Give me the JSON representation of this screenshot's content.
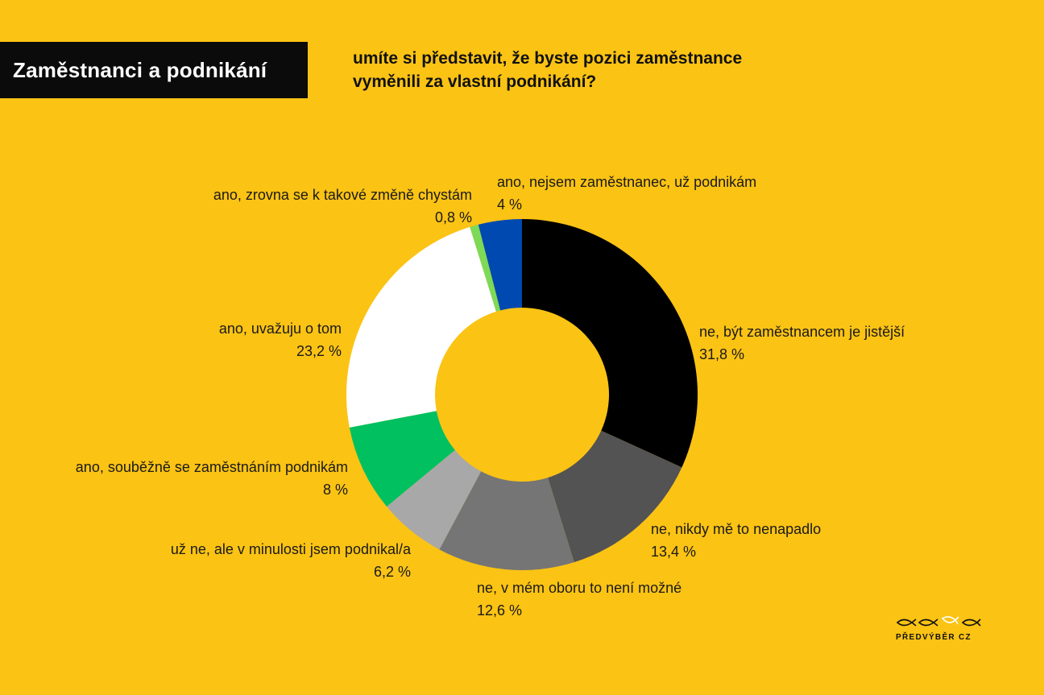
{
  "header": {
    "badge": "Zaměstnanci a podnikání",
    "question_line1": "umíte si představit, že byste pozici zaměstnance",
    "question_line2": "vyměnili za vlastní podnikání?"
  },
  "brand": {
    "name": "PŘEDVÝBĚR CZ"
  },
  "colors": {
    "background": "#FBC314",
    "badge_bg": "#0B0B0B"
  },
  "chart_data": {
    "type": "pie",
    "donut": true,
    "start": "top",
    "direction": "clockwise",
    "slices": [
      {
        "label": "ne, být zaměstnancem je jistější",
        "value": 31.8,
        "value_label": "31,8 %",
        "color": "#000000"
      },
      {
        "label": "ne, nikdy mě to nenapadlo",
        "value": 13.4,
        "value_label": "13,4 %",
        "color": "#535353"
      },
      {
        "label": "ne, v mém oboru to není možné",
        "value": 12.6,
        "value_label": "12,6 %",
        "color": "#757575"
      },
      {
        "label": "už ne, ale v minulosti jsem podnikal/a",
        "value": 6.2,
        "value_label": "6,2 %",
        "color": "#A8A8A8"
      },
      {
        "label": "ano, souběžně se zaměstnáním podnikám",
        "value": 8,
        "value_label": "8 %",
        "color": "#00C060"
      },
      {
        "label": "ano, uvažuju o tom",
        "value": 23.2,
        "value_label": "23,2 %",
        "color": "#FFFFFF"
      },
      {
        "label": "ano, zrovna se k takové změně chystám",
        "value": 0.8,
        "value_label": "0,8 %",
        "color": "#7ED957"
      },
      {
        "label": "ano, nejsem zaměstnanec, už podnikám",
        "value": 4,
        "value_label": "4 %",
        "color": "#0049B0"
      }
    ]
  }
}
